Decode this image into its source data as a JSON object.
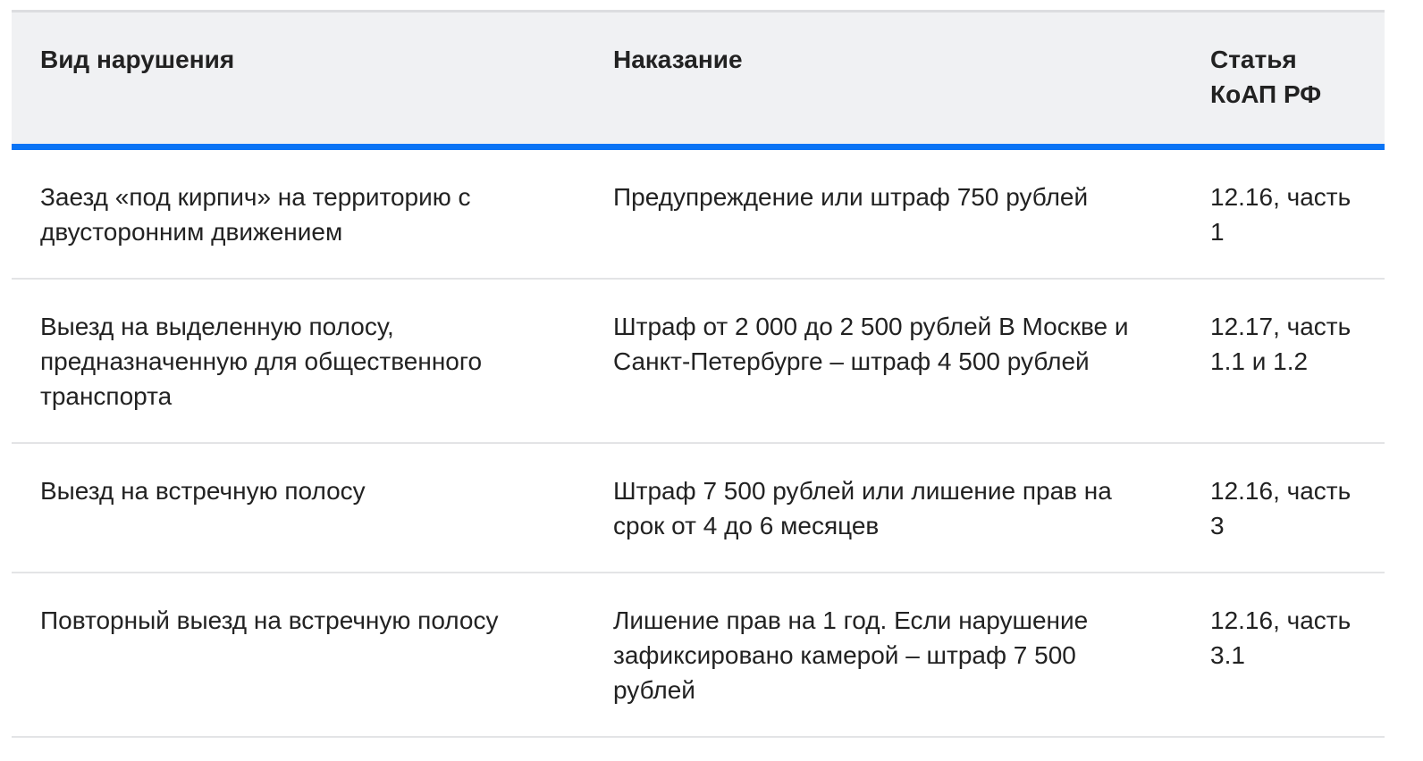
{
  "table": {
    "headers": [
      "Вид нарушения",
      "Наказание",
      "Статья КоАП РФ"
    ],
    "rows": [
      [
        "Заезд «под кирпич» на территорию с двусторонним движением",
        "Предупреждение или штраф 750 рублей",
        "12.16, часть 1"
      ],
      [
        "Выезд на выделенную полосу, предназначенную для общественного транспорта",
        "Штраф от 2 000 до 2 500 рублей В Москве и Санкт-Петербурге – штраф 4 500 рублей",
        "12.17, часть 1.1 и 1.2"
      ],
      [
        "Выезд на встречную полосу",
        "Штраф 7 500 рублей или лишение прав на срок от 4 до 6 месяцев",
        "12.16, часть 3"
      ],
      [
        "Повторный выезд на встречную полосу",
        "Лишение прав на 1 год. Если нарушение зафиксировано камерой – штраф 7 500 рублей",
        "12.16, часть 3.1"
      ]
    ]
  },
  "colors": {
    "header_bg": "#f0f1f3",
    "accent": "#0a74f5",
    "text": "#222222"
  }
}
